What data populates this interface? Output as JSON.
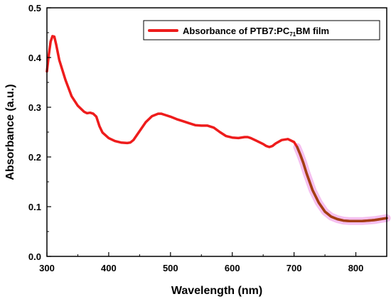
{
  "chart_data": {
    "type": "line",
    "xlabel": "Wavelength (nm)",
    "ylabel": "Absorbance (a.u.)",
    "xlim": [
      300,
      850
    ],
    "ylim": [
      0.0,
      0.5
    ],
    "x_ticks": [
      "300",
      "400",
      "500",
      "600",
      "700",
      "800"
    ],
    "y_ticks": [
      "0.0",
      "0.1",
      "0.2",
      "0.3",
      "0.4",
      "0.5"
    ],
    "grid": false,
    "legend_position": "top-right",
    "legend": {
      "prefix": "Absorbance of PTB7:PC",
      "subscript": "71",
      "suffix": "BM film"
    },
    "series": [
      {
        "name": "Absorbance of PTB7:PC71BM film",
        "color": "#ee1c1c",
        "highlight_color": "#f5c0f0",
        "highlight_from_x": 705,
        "x": [
          300,
          303,
          306,
          309,
          312,
          315,
          320,
          330,
          340,
          350,
          360,
          365,
          370,
          375,
          380,
          385,
          390,
          400,
          410,
          420,
          430,
          435,
          440,
          450,
          460,
          470,
          480,
          485,
          490,
          500,
          510,
          520,
          530,
          540,
          550,
          560,
          570,
          580,
          590,
          600,
          610,
          620,
          625,
          630,
          640,
          650,
          655,
          660,
          665,
          670,
          680,
          690,
          700,
          705,
          710,
          715,
          720,
          730,
          740,
          750,
          760,
          770,
          780,
          790,
          800,
          810,
          820,
          830,
          840,
          850
        ],
        "values": [
          0.372,
          0.405,
          0.432,
          0.443,
          0.442,
          0.426,
          0.395,
          0.355,
          0.322,
          0.303,
          0.291,
          0.288,
          0.289,
          0.287,
          0.281,
          0.262,
          0.249,
          0.238,
          0.232,
          0.229,
          0.228,
          0.229,
          0.234,
          0.252,
          0.27,
          0.282,
          0.287,
          0.287,
          0.285,
          0.281,
          0.276,
          0.272,
          0.268,
          0.264,
          0.263,
          0.263,
          0.259,
          0.25,
          0.242,
          0.239,
          0.238,
          0.24,
          0.24,
          0.238,
          0.232,
          0.226,
          0.222,
          0.22,
          0.222,
          0.227,
          0.234,
          0.236,
          0.23,
          0.22,
          0.205,
          0.188,
          0.168,
          0.133,
          0.108,
          0.09,
          0.08,
          0.075,
          0.072,
          0.071,
          0.071,
          0.071,
          0.072,
          0.073,
          0.075,
          0.077
        ]
      }
    ]
  }
}
